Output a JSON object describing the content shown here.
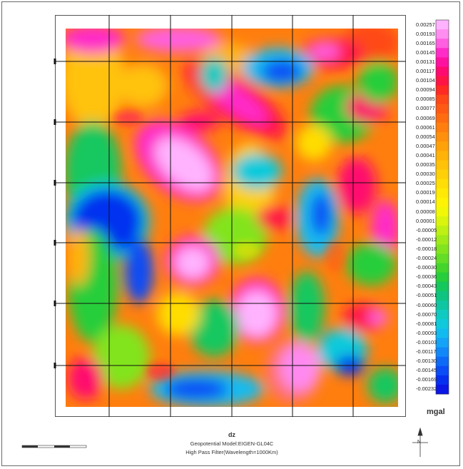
{
  "map": {
    "variable": "dz",
    "model_line": "Geopotential Model:EIGEN-GL04C",
    "filter_line": "High Pass Filter(Wavelength=1000Km)",
    "unit": "mgal",
    "legend": {
      "labels": [
        "0.00257",
        "0.00193",
        "0.00165",
        "0.00145",
        "0.00131",
        "0.00117",
        "0.00104",
        "0.00094",
        "0.00085",
        "0.00077",
        "0.00069",
        "0.00061",
        "0.00054",
        "0.00047",
        "0.00041",
        "0.00035",
        "0.00030",
        "0.00025",
        "0.00019",
        "0.00014",
        "0.00008",
        "0.00001",
        "-0.00005",
        "-0.00012",
        "-0.00018",
        "-0.00024",
        "-0.00030",
        "-0.00036",
        "-0.00043",
        "-0.00051",
        "-0.00060",
        "-0.00070",
        "-0.00081",
        "-0.00093",
        "-0.00103",
        "-0.00117",
        "-0.00130",
        "-0.00145",
        "-0.00169",
        "-0.00232"
      ],
      "colors": [
        "#ffb3ff",
        "#ff8ef0",
        "#ff5fe0",
        "#ff2bc8",
        "#ff11a0",
        "#ff0a6e",
        "#ff1446",
        "#ff2a22",
        "#ff4818",
        "#ff5a14",
        "#ff6c10",
        "#ff7e0e",
        "#ff900c",
        "#ffa20a",
        "#ffb309",
        "#ffc208",
        "#ffd007",
        "#ffdd06",
        "#ffe905",
        "#fff305",
        "#f2f707",
        "#daf40d",
        "#bff013",
        "#a0ea19",
        "#82e41f",
        "#63dd25",
        "#43d52c",
        "#26ce3b",
        "#14c85e",
        "#0fc480",
        "#0ec6a2",
        "#0fcac0",
        "#10cadb",
        "#12bbef",
        "#14a3f6",
        "#1288f8",
        "#0d6af7",
        "#0a4cf5",
        "#0630ef",
        "#0a17e6"
      ]
    },
    "north_arrow_label": "N"
  }
}
